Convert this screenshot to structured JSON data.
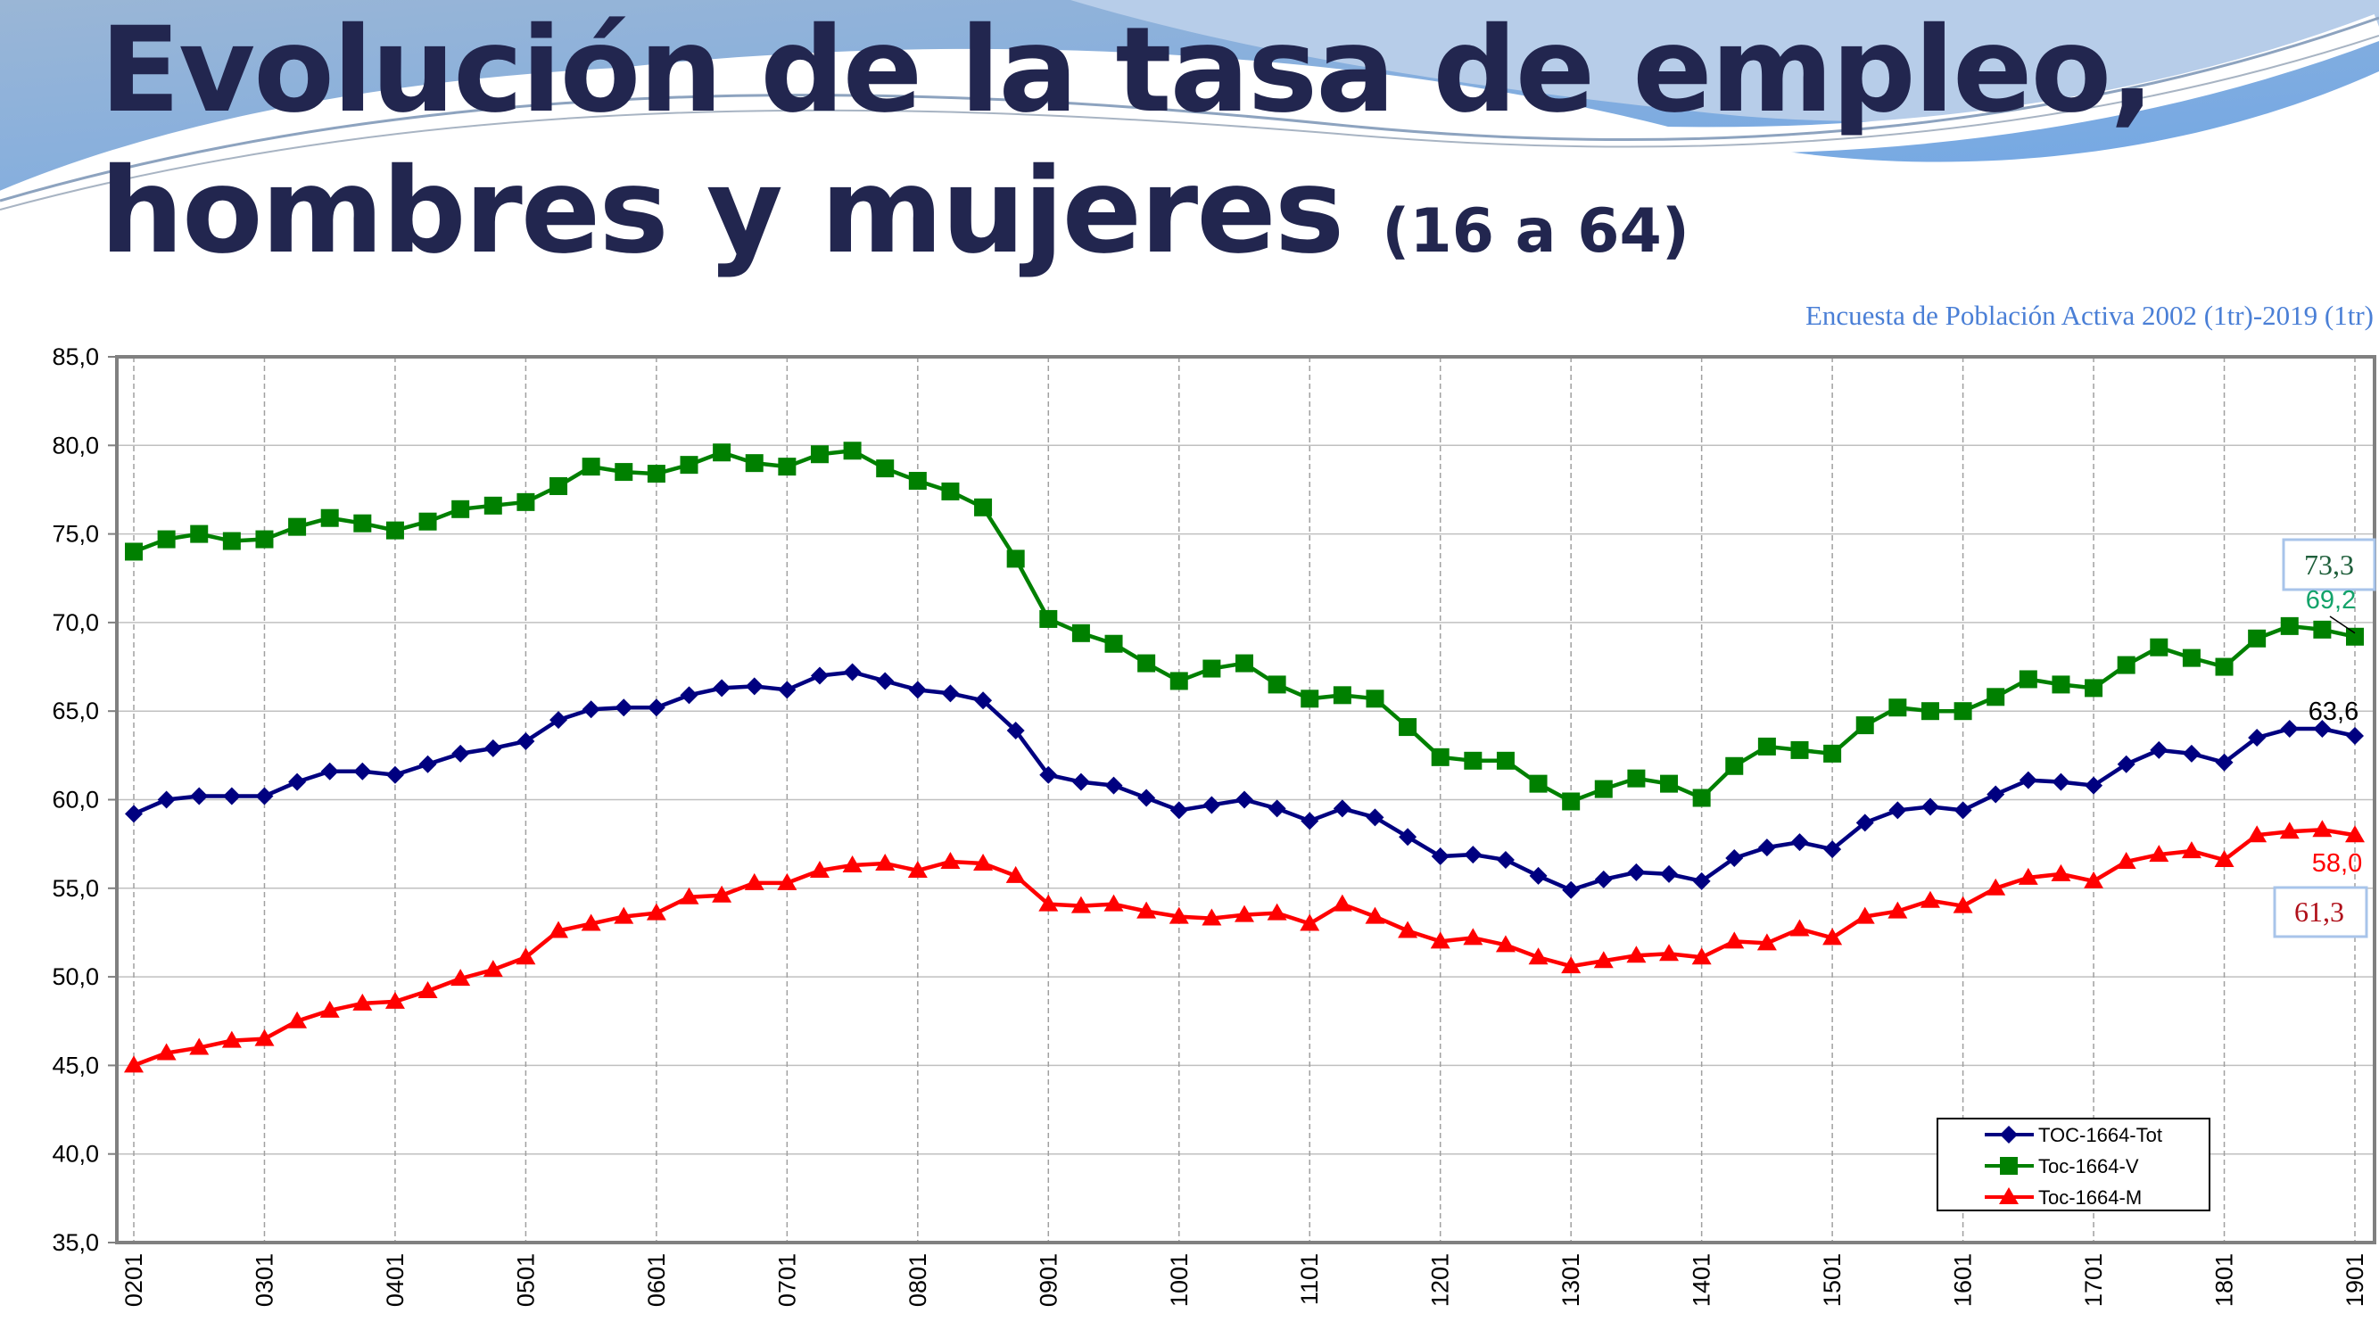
{
  "title_line1": "Evolución de la tasa de empleo,",
  "title_line2": "hombres y mujeres",
  "title_age": "(16 a 64)",
  "source": "Encuesta de Población Activa 2002 (1tr)-2019 (1tr)",
  "colors": {
    "title": "#22264f",
    "source": "#4a7fd6",
    "tot": "#000080",
    "v": "#008000",
    "m": "#ff0000"
  },
  "chart_data": {
    "type": "line",
    "ylim": [
      35,
      85
    ],
    "yticks": [
      "35,0",
      "40,0",
      "45,0",
      "50,0",
      "55,0",
      "60,0",
      "65,0",
      "70,0",
      "75,0",
      "80,0",
      "85,0"
    ],
    "xtick_labels": [
      "0201",
      "0301",
      "0401",
      "0501",
      "0601",
      "0701",
      "0801",
      "0901",
      "1001",
      "1101",
      "1201",
      "1301",
      "1401",
      "1501",
      "1601",
      "1701",
      "1801",
      "1901"
    ],
    "grid": true,
    "legend_position": "bottom-right",
    "series": [
      {
        "name": "TOC-1664-Tot",
        "marker": "diamond",
        "color": "#000080",
        "values": [
          59.2,
          60.0,
          60.2,
          60.2,
          60.2,
          61.0,
          61.6,
          61.6,
          61.4,
          62.0,
          62.6,
          62.9,
          63.3,
          64.5,
          65.1,
          65.2,
          65.2,
          65.9,
          66.3,
          66.4,
          66.2,
          67.0,
          67.2,
          66.7,
          66.2,
          66.0,
          65.6,
          63.9,
          61.4,
          61.0,
          60.8,
          60.1,
          59.4,
          59.7,
          60.0,
          59.5,
          58.8,
          59.5,
          59.0,
          57.9,
          56.8,
          56.9,
          56.6,
          55.7,
          54.9,
          55.5,
          55.9,
          55.8,
          55.4,
          56.7,
          57.3,
          57.6,
          57.2,
          58.7,
          59.4,
          59.6,
          59.4,
          60.3,
          61.1,
          61.0,
          60.8,
          62.0,
          62.8,
          62.6,
          62.1,
          63.5,
          64.0,
          64.0,
          63.6
        ]
      },
      {
        "name": "Toc-1664-V",
        "marker": "square",
        "color": "#008000",
        "values": [
          74.0,
          74.7,
          75.0,
          74.6,
          74.7,
          75.4,
          75.9,
          75.6,
          75.2,
          75.7,
          76.4,
          76.6,
          76.8,
          77.7,
          78.8,
          78.5,
          78.4,
          78.9,
          79.6,
          79.0,
          78.8,
          79.5,
          79.7,
          78.7,
          78.0,
          77.4,
          76.5,
          73.6,
          70.2,
          69.4,
          68.8,
          67.7,
          66.7,
          67.4,
          67.7,
          66.5,
          65.7,
          65.9,
          65.7,
          64.1,
          62.4,
          62.2,
          62.2,
          60.9,
          59.9,
          60.6,
          61.2,
          60.9,
          60.1,
          61.9,
          63.0,
          62.8,
          62.6,
          64.2,
          65.2,
          65.0,
          65.0,
          65.8,
          66.8,
          66.5,
          66.3,
          67.6,
          68.6,
          68.0,
          67.5,
          69.1,
          69.8,
          69.6,
          69.2
        ]
      },
      {
        "name": "Toc-1664-M",
        "marker": "triangle",
        "color": "#ff0000",
        "values": [
          45.0,
          45.7,
          46.0,
          46.4,
          46.5,
          47.5,
          48.1,
          48.5,
          48.6,
          49.2,
          49.9,
          50.4,
          51.1,
          52.6,
          53.0,
          53.4,
          53.6,
          54.5,
          54.6,
          55.3,
          55.3,
          56.0,
          56.3,
          56.4,
          56.0,
          56.5,
          56.4,
          55.7,
          54.1,
          54.0,
          54.1,
          53.7,
          53.4,
          53.3,
          53.5,
          53.6,
          53.0,
          54.1,
          53.4,
          52.6,
          52.0,
          52.2,
          51.8,
          51.1,
          50.6,
          50.9,
          51.2,
          51.3,
          51.1,
          52.0,
          51.9,
          52.7,
          52.2,
          53.4,
          53.7,
          54.3,
          54.0,
          55.0,
          55.6,
          55.8,
          55.4,
          56.5,
          56.9,
          57.1,
          56.6,
          58.0,
          58.2,
          58.3,
          58.0
        ]
      }
    ],
    "annotations": [
      {
        "text": "73,3",
        "color": "#1e5e3a",
        "boxed": true
      },
      {
        "text": "69,2",
        "color": "#13a36a",
        "boxed": false
      },
      {
        "text": "63,6",
        "color": "#000000",
        "boxed": false
      },
      {
        "text": "58,0",
        "color": "#ff0000",
        "boxed": false
      },
      {
        "text": "61,3",
        "color": "#b0101a",
        "boxed": true
      }
    ]
  }
}
